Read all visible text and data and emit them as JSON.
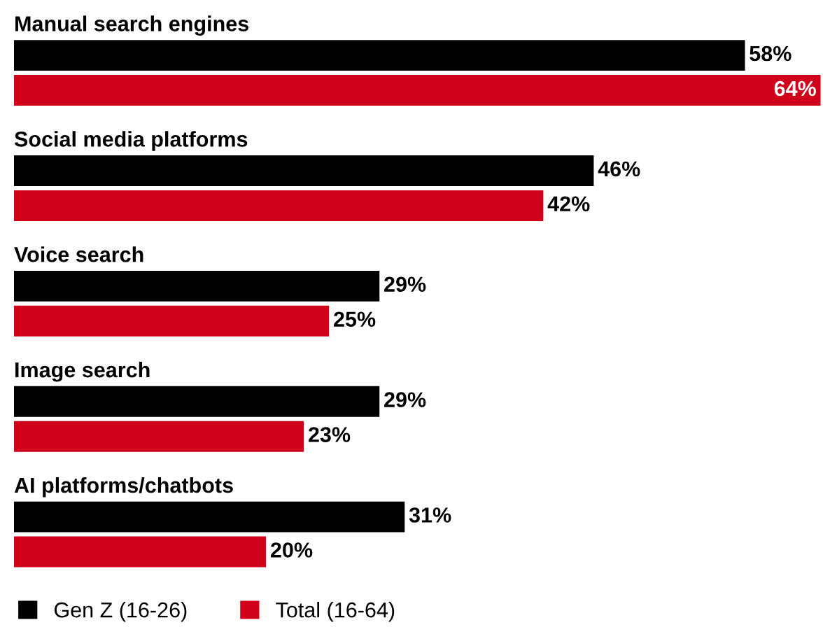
{
  "chart_data": {
    "type": "bar",
    "orientation": "horizontal",
    "categories": [
      "Manual search engines",
      "Social media platforms",
      "Voice search",
      "Image search",
      "AI platforms/chatbots"
    ],
    "series": [
      {
        "name": "Gen Z (16-26)",
        "color": "#000000",
        "values": [
          58,
          46,
          29,
          29,
          31
        ],
        "value_labels": [
          "58%",
          "46%",
          "29%",
          "29%",
          "31%"
        ]
      },
      {
        "name": "Total (16-64)",
        "color": "#d0021b",
        "values": [
          64,
          42,
          25,
          23,
          20
        ],
        "value_labels": [
          "64%",
          "42%",
          "25%",
          "23%",
          "20%"
        ]
      }
    ],
    "legend": "bottom left"
  }
}
